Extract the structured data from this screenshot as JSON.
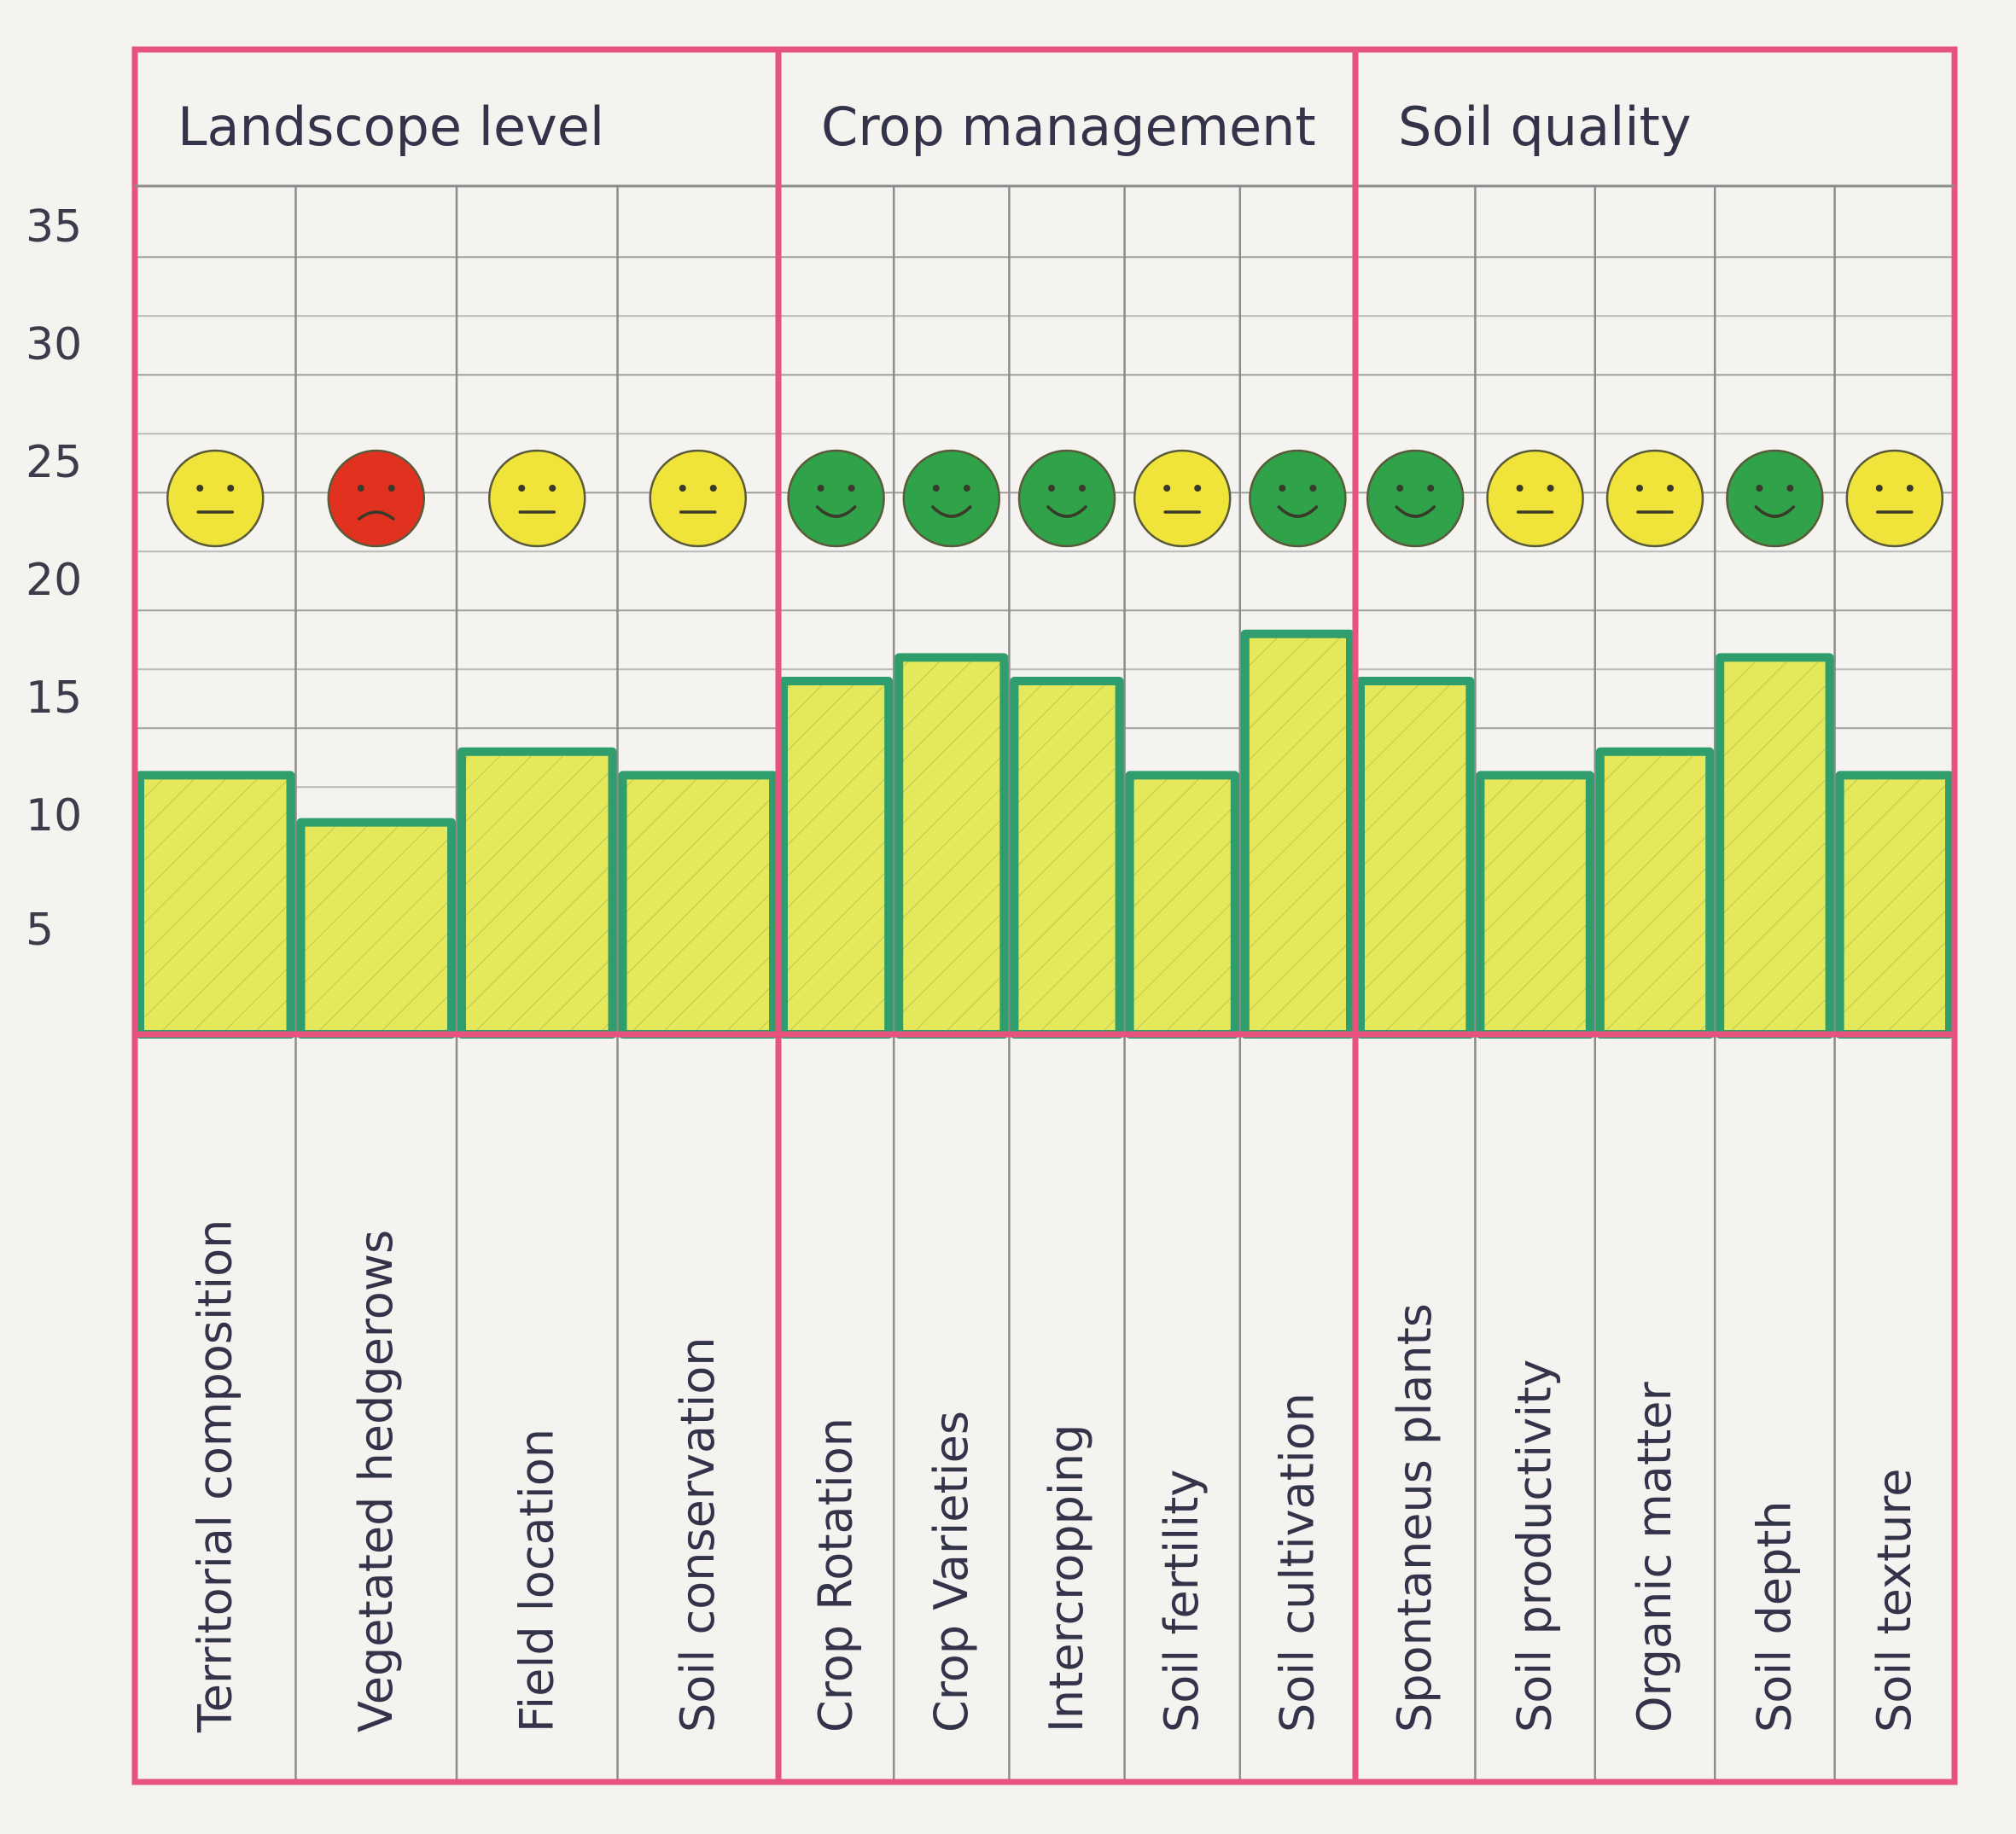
{
  "chart_data": {
    "type": "bar",
    "ylim": [
      0,
      40
    ],
    "yticks": [
      5,
      10,
      15,
      20,
      25,
      30,
      35
    ],
    "grid": true,
    "groups": [
      {
        "name": "Landscope level",
        "items": [
          {
            "label": "Territorial composition",
            "value": 13,
            "smiley": "yellow"
          },
          {
            "label": "Vegetated hedgerows",
            "value": 11,
            "smiley": "red"
          },
          {
            "label": "Field location",
            "value": 14,
            "smiley": "yellow"
          },
          {
            "label": "Soil conservation",
            "value": 13,
            "smiley": "yellow"
          }
        ]
      },
      {
        "name": "Crop management",
        "items": [
          {
            "label": "Crop Rotation",
            "value": 17,
            "smiley": "green"
          },
          {
            "label": "Crop Varieties",
            "value": 18,
            "smiley": "green"
          },
          {
            "label": "Intercropping",
            "value": 17,
            "smiley": "green"
          },
          {
            "label": "Soil fertility",
            "value": 13,
            "smiley": "yellow"
          },
          {
            "label": "Soil cultivation",
            "value": 19,
            "smiley": "green"
          }
        ]
      },
      {
        "name": "Soil quality",
        "items": [
          {
            "label": "Spontaneus plants",
            "value": 17,
            "smiley": "green"
          },
          {
            "label": "Soil productivity",
            "value": 13,
            "smiley": "yellow"
          },
          {
            "label": "Organic matter",
            "value": 14,
            "smiley": "yellow"
          },
          {
            "label": "Soil depth",
            "value": 18,
            "smiley": "green"
          },
          {
            "label": "Soil texture",
            "value": 13,
            "smiley": "yellow"
          }
        ]
      }
    ]
  },
  "colors": {
    "frame": "#e8527e",
    "grid": "#8c8c8c",
    "bar_fill": "#e4e85a",
    "bar_outline": "#2f9e6c",
    "smiley_green": "#2fa24a",
    "smiley_yellow": "#f0e33a",
    "smiley_red": "#e0321f"
  }
}
